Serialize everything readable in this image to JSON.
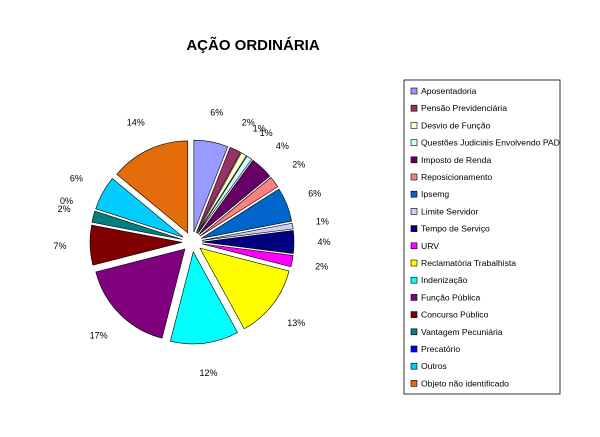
{
  "chart_data": {
    "type": "pie",
    "title": "AÇÃO ORDINÁRIA",
    "legend_position": "right",
    "slices": [
      {
        "label": "Aposentadoria",
        "value": 6,
        "display": "6%",
        "color": "#9999ff"
      },
      {
        "label": "Pensão Previdenciária",
        "value": 2,
        "display": "2%",
        "color": "#993366"
      },
      {
        "label": "Desvio de Função",
        "value": 1,
        "display": "1%",
        "color": "#ffffcc"
      },
      {
        "label": "Questões Judiciais Envolvendo PAD",
        "value": 1,
        "display": "1%",
        "color": "#ccffff"
      },
      {
        "label": "Imposto de Renda",
        "value": 4,
        "display": "4%",
        "color": "#660066"
      },
      {
        "label": "Reposicionamento",
        "value": 2,
        "display": "2%",
        "color": "#ff8080"
      },
      {
        "label": "Ipsemg",
        "value": 6,
        "display": "6%",
        "color": "#0066cc"
      },
      {
        "label": "Limite Servidor",
        "value": 1,
        "display": "1%",
        "color": "#ccccff"
      },
      {
        "label": "Tempo de Serviço",
        "value": 4,
        "display": "4%",
        "color": "#000080"
      },
      {
        "label": "URV",
        "value": 2,
        "display": "2%",
        "color": "#ff00ff"
      },
      {
        "label": "Reclamatória Trabalhista",
        "value": 13,
        "display": "13%",
        "color": "#ffff00"
      },
      {
        "label": "Indenização",
        "value": 12,
        "display": "12%",
        "color": "#00ffff"
      },
      {
        "label": "Função Pública",
        "value": 17,
        "display": "17%",
        "color": "#800080"
      },
      {
        "label": "Concurso Público",
        "value": 7,
        "display": "7%",
        "color": "#800000"
      },
      {
        "label": "Vantagem Pecuniária",
        "value": 2,
        "display": "2%",
        "color": "#008080"
      },
      {
        "label": "Precatório",
        "value": 0,
        "display": "0%",
        "color": "#0000ff"
      },
      {
        "label": "Outros",
        "value": 6,
        "display": "6%",
        "color": "#00ccff"
      },
      {
        "label": "Objeto não identificado",
        "value": 14,
        "display": "14%",
        "color": "#e46c0a"
      }
    ]
  }
}
